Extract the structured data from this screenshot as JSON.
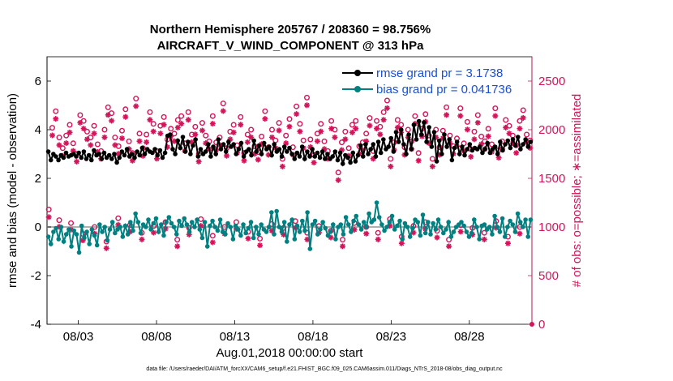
{
  "chart_data": {
    "type": "line",
    "title": "Northern Hemisphere 205767 / 208360 = 98.756%",
    "subtitle": "AIRCRAFT_V_WIND_COMPONENT @ 313 hPa",
    "xlabel": "Aug.01,2018 00:00:00 start",
    "ylabel_left": "rmse and bias (model - observation)",
    "ylabel_right": "# of obs: o=possible; ∗=assimilated",
    "footnote": "data file: /Users/raeder/DAI/ATM_forcXX/CAM6_setup/f.e21.FHIST_BGC.f09_025.CAM6assim.011/Diags_NTrS_2018-08/obs_diag_output.nc",
    "x_ticks": [
      "08/03",
      "08/08",
      "08/13",
      "08/18",
      "08/23",
      "08/28"
    ],
    "x_tick_days": [
      3,
      8,
      13,
      18,
      23,
      28
    ],
    "x_range_days": [
      1,
      32
    ],
    "y_left_ticks": [
      "-4",
      "-2",
      "0",
      "2",
      "4",
      "6"
    ],
    "y_left_range": [
      -4,
      7
    ],
    "y_right_ticks": [
      "0",
      "500",
      "1000",
      "1500",
      "2000",
      "2500"
    ],
    "y_right_range": [
      0,
      2750
    ],
    "legend": {
      "rmse": "rmse grand pr = 3.1738",
      "bias": "bias grand pr = 0.041736"
    },
    "colors": {
      "rmse": "#000000",
      "bias": "#008080",
      "obs": "#d4145a",
      "zero_line": "#b0b0b0",
      "legend_text": "#1a4fd6"
    },
    "rmse_values": [
      3.1,
      2.75,
      3.0,
      2.9,
      2.75,
      2.95,
      2.85,
      3.05,
      2.9,
      2.95,
      3.0,
      2.9,
      3.05,
      2.85,
      3.1,
      2.8,
      2.95,
      2.75,
      3.15,
      2.95,
      3.0,
      2.8,
      3.05,
      2.85,
      2.95,
      2.8,
      3.0,
      2.65,
      2.85,
      3.1,
      2.95,
      3.2,
      2.9,
      3.0,
      2.85,
      3.1,
      2.95,
      3.25,
      3.0,
      3.2,
      3.1,
      3.05,
      3.2,
      2.95,
      3.15,
      2.85,
      3.05,
      3.75,
      3.8,
      3.2,
      3.0,
      3.55,
      3.25,
      3.7,
      3.1,
      3.5,
      3.0,
      3.35,
      3.6,
      2.9,
      3.2,
      3.0,
      3.1,
      3.4,
      2.9,
      3.3,
      3.0,
      3.6,
      3.2,
      3.4,
      3.1,
      3.5,
      3.3,
      3.4,
      3.0,
      3.2,
      3.45,
      2.9,
      3.1,
      3.2,
      2.95,
      3.55,
      3.1,
      3.35,
      3.0,
      3.45,
      3.2,
      3.3,
      2.95,
      3.4,
      3.1,
      3.2,
      2.9,
      3.3,
      3.1,
      3.25,
      3.0,
      2.8,
      3.05,
      2.9,
      3.3,
      2.8,
      3.1,
      2.9,
      3.2,
      2.9,
      3.05,
      2.85,
      3.1,
      2.8,
      3.0,
      2.8,
      2.9,
      3.1,
      2.75,
      3.05,
      2.6,
      2.95,
      2.85,
      2.65,
      3.05,
      2.7,
      2.95,
      3.35,
      2.9,
      3.4,
      3.0,
      3.2,
      3.4,
      2.9,
      3.5,
      3.05,
      3.6,
      3.2,
      3.3,
      3.65,
      3.1,
      3.9,
      3.5,
      4.0,
      3.4,
      3.0,
      3.8,
      3.2,
      4.2,
      3.6,
      4.35,
      3.8,
      4.3,
      3.5,
      4.1,
      3.3,
      3.9,
      2.7,
      3.55,
      3.0,
      3.8,
      3.3,
      3.6,
      2.75,
      3.25,
      3.5,
      3.0,
      3.3,
      2.95,
      3.2,
      3.4,
      3.15,
      3.25,
      3.2,
      3.3,
      3.05,
      3.2,
      3.45,
      3.05,
      3.2,
      3.3,
      3.0,
      3.5,
      3.15,
      3.4,
      3.55,
      3.25,
      3.6,
      3.35,
      3.7,
      3.2,
      3.4,
      3.6,
      3.3,
      3.5
    ],
    "bias_values": [
      -0.4,
      -0.7,
      -0.2,
      -0.05,
      -0.5,
      0.0,
      -0.6,
      -0.3,
      -0.1,
      -0.8,
      -0.15,
      -0.3,
      -1.05,
      0.05,
      -0.45,
      -0.2,
      -0.7,
      -0.1,
      -0.35,
      -0.75,
      0.1,
      -0.2,
      0.0,
      -0.55,
      -0.1,
      0.2,
      -0.25,
      -0.1,
      0.0,
      -0.4,
      0.05,
      -0.3,
      0.2,
      -0.15,
      0.55,
      0.2,
      -0.25,
      0.1,
      0.0,
      0.3,
      -0.1,
      0.15,
      0.35,
      -0.2,
      0.1,
      -0.35,
      0.2,
      0.4,
      0.15,
      0.0,
      -0.3,
      0.25,
      0.05,
      0.35,
      0.1,
      -0.2,
      0.2,
      0.0,
      0.3,
      -0.1,
      -0.45,
      0.2,
      -0.8,
      0.05,
      0.25,
      0.0,
      -0.15,
      0.3,
      -0.2,
      -0.3,
      0.15,
      0.0,
      -0.5,
      0.05,
      -0.1,
      -0.35,
      0.1,
      -0.25,
      -0.05,
      0.2,
      -0.45,
      0.0,
      -0.3,
      0.1,
      -0.1,
      -0.2,
      0.0,
      0.6,
      -0.3,
      0.65,
      0.0,
      -0.2,
      0.2,
      -0.6,
      0.1,
      0.3,
      -0.5,
      0.05,
      -0.2,
      0.25,
      -0.15,
      0.6,
      -0.9,
      0.1,
      0.25,
      -0.3,
      -0.1,
      0.2,
      -0.05,
      -0.35,
      -0.2,
      0.1,
      -0.5,
      0.0,
      0.1,
      -0.3,
      0.4,
      0.1,
      -0.2,
      0.25,
      0.45,
      0.1,
      -0.1,
      0.2,
      0.0,
      0.55,
      0.2,
      0.3,
      1.0,
      0.4,
      0.1,
      -0.15,
      0.0,
      0.2,
      0.45,
      -0.1,
      0.05,
      0.25,
      -0.5,
      0.15,
      0.0,
      -0.4,
      -0.05,
      0.3,
      0.2,
      -0.35,
      0.5,
      -0.25,
      0.2,
      -0.3,
      0.15,
      -0.1,
      0.3,
      0.0,
      -0.25,
      -0.1,
      0.2,
      -0.4,
      -0.2,
      0.0,
      0.1,
      0.2,
      0.05,
      -0.2,
      -0.4,
      -0.25,
      0.3,
      0.0,
      -0.5,
      0.05,
      0.1,
      -0.1,
      0.0,
      -0.3,
      0.45,
      0.0,
      -0.2,
      0.35,
      -0.4,
      0.0,
      0.25,
      0.1,
      -0.2,
      0.55,
      0.2,
      0.0,
      0.3,
      -0.4,
      0.3
    ],
    "obs_possible": [
      1180,
      2020,
      2190,
      1920,
      1810,
      1940,
      2050,
      1860,
      1750,
      2150,
      2090,
      1980,
      1920,
      2040,
      1850,
      1780,
      2000,
      2230,
      2170,
      1920,
      1830,
      1990,
      2210,
      1880,
      1760,
      2320,
      1960,
      1810,
      1950,
      2180,
      2060,
      1780,
      2040,
      2130,
      1900,
      2010,
      1960,
      2100,
      2140,
      1860,
      2180,
      1950,
      2030,
      1750,
      2070,
      1940,
      1880,
      2140,
      1870,
      1920,
      2270,
      1810,
      1980,
      2050,
      1840,
      2130,
      1760,
      1950,
      2000,
      1830,
      1770,
      1930,
      2190,
      1820,
      2000,
      1890,
      2070,
      1700,
      1940,
      2110,
      1820,
      2240,
      2060,
      1890,
      2330,
      1900,
      1740,
      1960,
      2060,
      1880,
      1780,
      2090,
      2000,
      1560,
      1870,
      1980,
      1810,
      2050,
      2090,
      1830,
      1870,
      1960,
      2120,
      1780,
      2090,
      2030,
      2180,
      2300,
      1700,
      1870,
      2100,
      2050,
      1820,
      2000,
      1880,
      2140,
      1760,
      2010,
      2160,
      1940,
      1700,
      2000,
      1820,
      1990,
      2230,
      1940,
      1830,
      1910,
      2220,
      1860,
      2080,
      1800,
      1980,
      2150,
      1930,
      1880,
      2010,
      1850,
      2220,
      1790,
      1880,
      2100,
      2040,
      1940,
      1840,
      2090,
      2200,
      1950,
      1890
    ],
    "obs_assimilated": [
      1160,
      2000,
      2170,
      1900,
      1790,
      1920,
      2030,
      1840,
      1730,
      2130,
      2070,
      1960,
      1900,
      2020,
      1830,
      1760,
      1980,
      2210,
      2150,
      1900,
      1810,
      1970,
      2190,
      1860,
      1740,
      2300,
      1940,
      1790,
      1930,
      2160,
      2040,
      1760,
      2020,
      2110,
      1880,
      1990,
      1940,
      2080,
      2120,
      1840,
      2160,
      1930,
      2010,
      1730,
      2050,
      1920,
      1860,
      2120,
      1850,
      1900,
      2250,
      1790,
      1960,
      2030,
      1820,
      2110,
      1740,
      1930,
      1980,
      1810,
      1750,
      1910,
      2170,
      1800,
      1980,
      1870,
      2050,
      1680,
      1920,
      2090,
      1800,
      2220,
      2040,
      1870,
      2310,
      1880,
      1720,
      1940,
      2040,
      1860,
      1760,
      2070,
      1980,
      1540,
      1850,
      1960,
      1790,
      2030,
      2070,
      1810,
      1850,
      1940,
      2100,
      1760,
      2070,
      2010,
      2160,
      2280,
      1680,
      1850,
      2080,
      2030,
      1800,
      1980,
      1860,
      2120,
      1740,
      1990,
      2140,
      1920,
      1680,
      1980,
      1800,
      1970,
      2210,
      1920,
      1810,
      1890,
      2200,
      1840,
      2060,
      1780,
      1960,
      2130,
      1910,
      1860,
      1990,
      1830,
      2200,
      1770,
      1860,
      2080,
      2020,
      1920,
      1820,
      2070,
      2180,
      1930,
      1870
    ],
    "obs_low_possible": [
      1070,
      1040,
      930,
      1000,
      850,
      1090,
      1020,
      940,
      1010,
      1050,
      870,
      990,
      1080,
      910,
      1000,
      1050,
      950,
      880,
      1030,
      990,
      1060,
      940,
      1010,
      960,
      870,
      1040,
      1000,
      940,
      1080,
      900,
      1010,
      1050,
      960,
      870,
      1020,
      990,
      940,
      1060,
      900,
      1000
    ],
    "obs_low_assimilated": [
      1060,
      1030,
      920,
      990,
      840,
      1080,
      1010,
      930,
      1000,
      1040,
      860,
      980,
      1070,
      900,
      990,
      1040,
      940,
      870,
      1020,
      980,
      1050,
      930,
      1000,
      950,
      860,
      1030,
      990,
      930,
      1070,
      890,
      1000,
      1040,
      950,
      860,
      1010,
      980,
      930,
      1050,
      890,
      990
    ]
  }
}
